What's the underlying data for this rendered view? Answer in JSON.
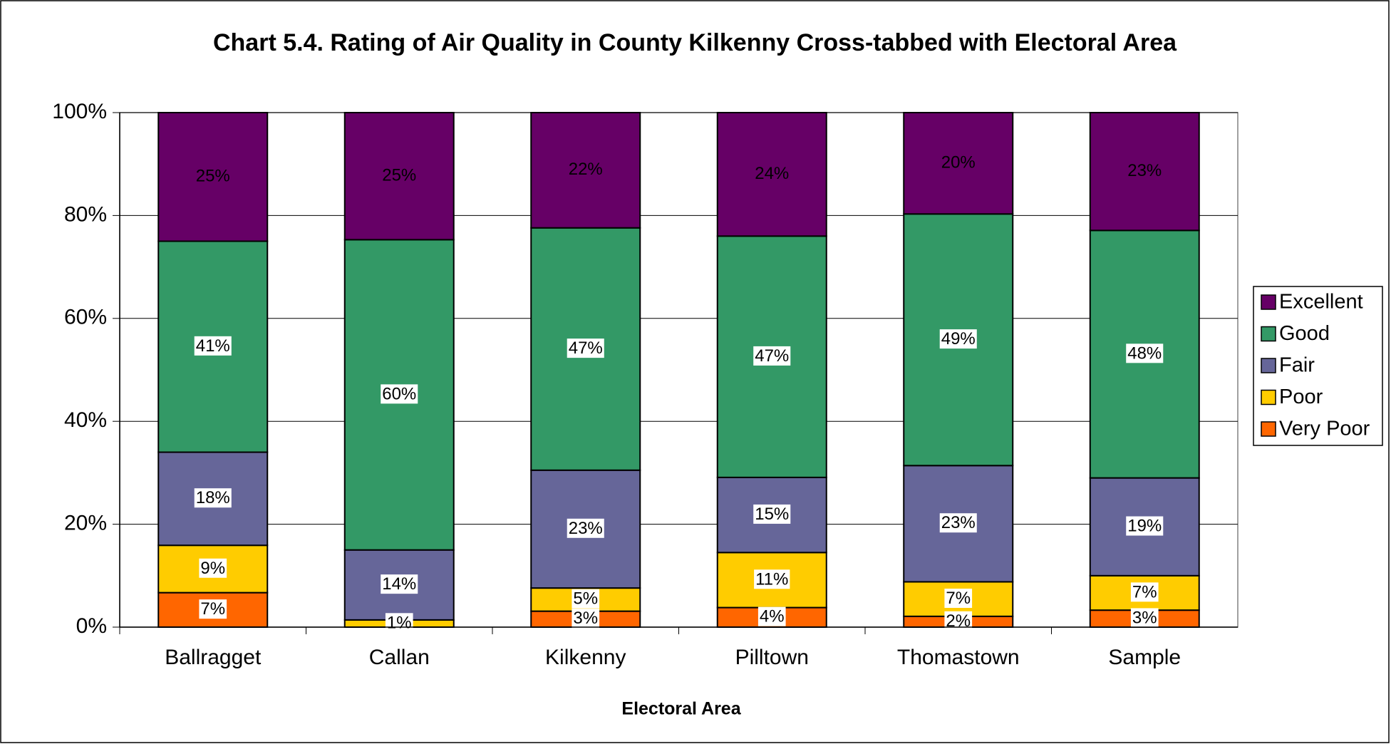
{
  "chart_data": {
    "type": "stacked_bar",
    "title": "Chart 5.4. Rating of Air Quality in County Kilkenny Cross-tabbed with Electoral Area",
    "x_label": "Electoral Area",
    "categories": [
      "Ballragget",
      "Callan",
      "Kilkenny",
      "Pilltown",
      "Thomastown",
      "Sample"
    ],
    "series": [
      {
        "name": "Very Poor",
        "color": "#ff6600",
        "values": [
          6.7,
          0,
          3.1,
          3.8,
          2.1,
          3.3
        ],
        "value_labels": [
          "7%",
          null,
          "3%",
          "4%",
          "2%",
          "3%"
        ]
      },
      {
        "name": "Poor",
        "color": "#ffcc00",
        "values": [
          9.2,
          1.4,
          4.5,
          10.7,
          6.7,
          6.7
        ],
        "value_labels": [
          "9%",
          "1%",
          "5%",
          "11%",
          "7%",
          "7%"
        ]
      },
      {
        "name": "Fair",
        "color": "#666699",
        "values": [
          18.1,
          13.6,
          22.9,
          14.6,
          22.6,
          19.0
        ],
        "value_labels": [
          "18%",
          "14%",
          "23%",
          "15%",
          "23%",
          "19%"
        ]
      },
      {
        "name": "Good",
        "color": "#339966",
        "values": [
          41.0,
          60.3,
          47.1,
          46.9,
          48.9,
          48.1
        ],
        "value_labels": [
          "41%",
          "60%",
          "47%",
          "47%",
          "49%",
          "48%"
        ]
      },
      {
        "name": "Excellent",
        "color": "#660066",
        "values": [
          25.0,
          24.7,
          22.4,
          24.0,
          19.7,
          22.9
        ],
        "value_labels": [
          "25%",
          "25%",
          "22%",
          "24%",
          "20%",
          "23%"
        ]
      }
    ],
    "ylim": [
      0,
      100
    ],
    "yticks": [
      {
        "value": 0,
        "label": "0%"
      },
      {
        "value": 20,
        "label": "20%"
      },
      {
        "value": 40,
        "label": "40%"
      },
      {
        "value": 60,
        "label": "60%"
      },
      {
        "value": 80,
        "label": "80%"
      },
      {
        "value": 100,
        "label": "100%"
      }
    ],
    "grid": true,
    "legend": "right"
  }
}
